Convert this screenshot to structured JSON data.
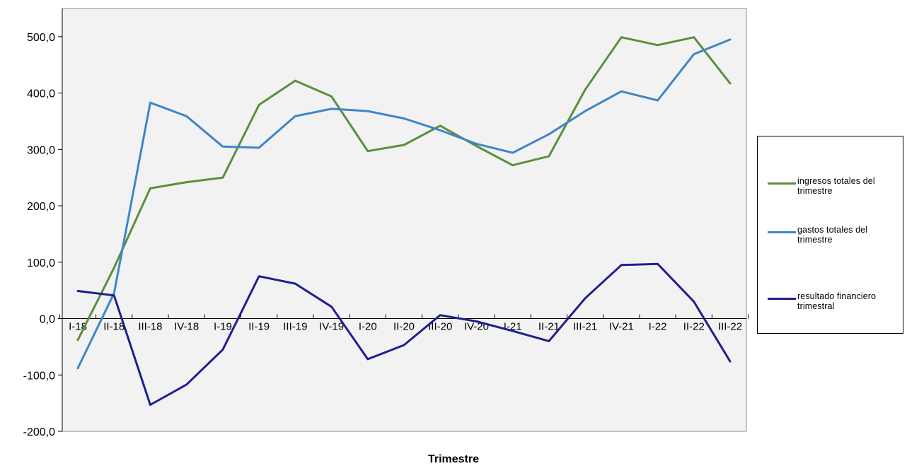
{
  "chart_data": {
    "type": "line",
    "title": "",
    "xlabel": "Trimestre",
    "ylabel": "",
    "ylim": [
      -200,
      550
    ],
    "yticks": [
      -200,
      -100,
      0,
      100,
      200,
      300,
      400,
      500
    ],
    "ytick_labels": [
      "-200,0",
      "-100,0",
      "0,0",
      "100,0",
      "200,0",
      "300,0",
      "400,0",
      "500,0"
    ],
    "categories": [
      "I-18",
      "II-18",
      "III-18",
      "IV-18",
      "I-19",
      "II-19",
      "III-19",
      "IV-19",
      "I-20",
      "II-20",
      "III-20",
      "IV-20",
      "I-21",
      "II-21",
      "III-21",
      "IV-21",
      "I-22",
      "II-22",
      "III-22"
    ],
    "grid": false,
    "legend_position": "right",
    "series": [
      {
        "name": "ingresos totales del trimestre",
        "name_lines": [
          "ingresos totales del",
          "trimestre"
        ],
        "color": "#5a8f3c",
        "values": [
          -38,
          90,
          231,
          242,
          250,
          379,
          422,
          394,
          297,
          308,
          342,
          306,
          272,
          288,
          406,
          499,
          485,
          499,
          417
        ]
      },
      {
        "name": "gastos totales del trimestre",
        "name_lines": [
          "gastos totales del",
          "trimestre"
        ],
        "color": "#3f86c6",
        "values": [
          -88,
          45,
          383,
          359,
          305,
          303,
          359,
          372,
          368,
          355,
          334,
          310,
          294,
          327,
          368,
          403,
          387,
          469,
          495
        ]
      },
      {
        "name": "resultado financiero trimestral",
        "name_lines": [
          "resultado financiero",
          "trimestral"
        ],
        "color": "#1f1f8f",
        "values": [
          49,
          41,
          -153,
          -117,
          -55,
          75,
          62,
          21,
          -72,
          -47,
          6,
          -5,
          -22,
          -40,
          36,
          95,
          97,
          30,
          -76
        ]
      }
    ]
  }
}
